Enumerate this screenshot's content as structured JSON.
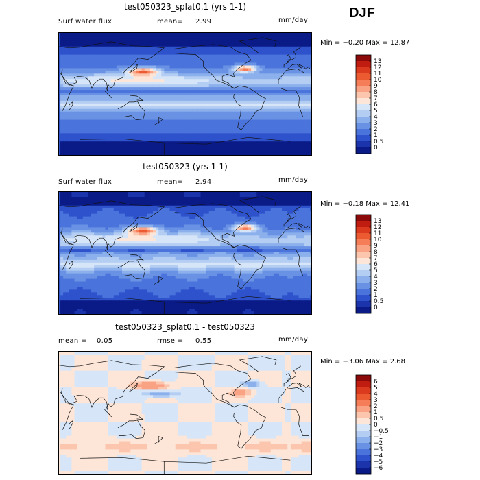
{
  "season": "DJF",
  "panels": [
    {
      "title": "test050323_splat0.1 (yrs 1-1)",
      "left_label": "Surf water flux",
      "stat1_label": "mean=",
      "stat1_value": "2.99",
      "units": "mm/day",
      "min_max": "Min =  −0.20 Max =  12.87",
      "field": "absolute"
    },
    {
      "title": "test050323 (yrs 1-1)",
      "left_label": "Surf water flux",
      "stat1_label": "mean=",
      "stat1_value": "2.94",
      "units": "mm/day",
      "min_max": "Min =  −0.18 Max =  12.41",
      "field": "absolute"
    },
    {
      "title": "test050323_splat0.1 - test050323",
      "left_label": "mean =",
      "left_value": "0.05",
      "stat1_label": "rmse =",
      "stat1_value": "0.55",
      "units": "mm/day",
      "min_max": "Min =  −3.06 Max =    2.68",
      "field": "difference"
    }
  ],
  "chart_data": [
    {
      "type": "heatmap",
      "title": "test050323_splat0.1 (yrs 1-1)",
      "variable": "Surf water flux",
      "units": "mm/day",
      "mean": 2.99,
      "min": -0.2,
      "max": 12.87,
      "colorbar_levels": [
        "13",
        "12",
        "11",
        "10",
        "9",
        "8",
        "7",
        "6",
        "5",
        "4",
        "3",
        "2",
        "1",
        "0.5",
        "0"
      ],
      "colorbar_colors": [
        "#8c0a0a",
        "#c01c10",
        "#dc3a1e",
        "#ec5a32",
        "#f57e58",
        "#f9a284",
        "#fcc6ae",
        "#fde6d8",
        "#d6e6f8",
        "#b4cdf2",
        "#8cb0ec",
        "#6a92e4",
        "#4a74dc",
        "#2e52cc",
        "#1b34ac",
        "#0a1a86"
      ]
    },
    {
      "type": "heatmap",
      "title": "test050323 (yrs 1-1)",
      "variable": "Surf water flux",
      "units": "mm/day",
      "mean": 2.94,
      "min": -0.18,
      "max": 12.41,
      "colorbar_levels": [
        "13",
        "12",
        "11",
        "10",
        "9",
        "8",
        "7",
        "6",
        "5",
        "4",
        "3",
        "2",
        "1",
        "0.5",
        "0"
      ],
      "colorbar_colors": [
        "#8c0a0a",
        "#c01c10",
        "#dc3a1e",
        "#ec5a32",
        "#f57e58",
        "#f9a284",
        "#fcc6ae",
        "#fde6d8",
        "#d6e6f8",
        "#b4cdf2",
        "#8cb0ec",
        "#6a92e4",
        "#4a74dc",
        "#2e52cc",
        "#1b34ac",
        "#0a1a86"
      ]
    },
    {
      "type": "heatmap",
      "title": "test050323_splat0.1 - test050323",
      "variable": "difference",
      "units": "mm/day",
      "mean": 0.05,
      "rmse": 0.55,
      "min": -3.06,
      "max": 2.68,
      "colorbar_levels": [
        "6",
        "5",
        "4",
        "3",
        "2",
        "1",
        "0.5",
        "0",
        "−0.5",
        "−1",
        "−2",
        "−3",
        "−4",
        "−5",
        "−6"
      ],
      "colorbar_colors": [
        "#8c0a0a",
        "#c01c10",
        "#dc3a1e",
        "#ec5a32",
        "#f57e58",
        "#f9a284",
        "#fcc6ae",
        "#fde6d8",
        "#d6e6f8",
        "#b4cdf2",
        "#8cb0ec",
        "#6a92e4",
        "#4a74dc",
        "#2e52cc",
        "#1b34ac",
        "#0a1a86"
      ]
    }
  ]
}
